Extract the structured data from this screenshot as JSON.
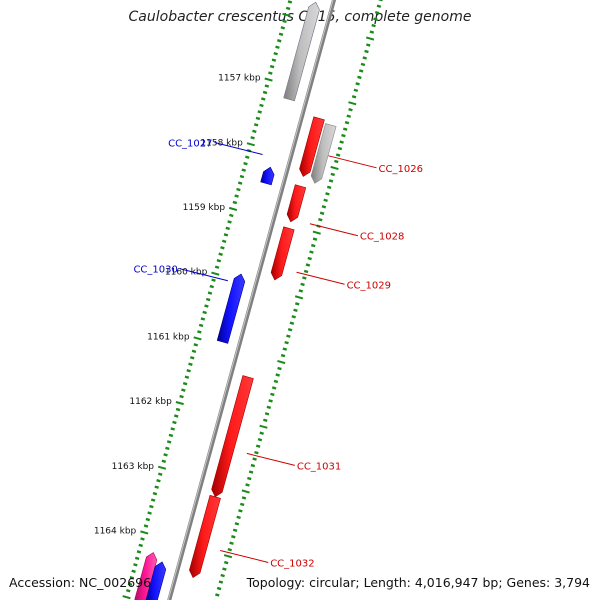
{
  "title": "Caulobacter crescentus CB15, complete genome",
  "footer": {
    "accession": "Accession: NC_002696",
    "summary": "Topology: circular; Length: 4,016,947 bp; Genes: 3,794"
  },
  "colors": {
    "forward_gene": "#ff0000",
    "reverse_gene": "#0000ff",
    "pseudo_gene": "#b3b3b3",
    "rna_gene": "#ff1493",
    "backbone": "#808080",
    "ruler": "#1a8c1a",
    "forward_label": "#cc0000",
    "reverse_label": "#0000cc"
  },
  "ruler_ticks": [
    {
      "label": "1157 kbp",
      "kbp": 1157
    },
    {
      "label": "1158 kbp",
      "kbp": 1158
    },
    {
      "label": "1159 kbp",
      "kbp": 1159
    },
    {
      "label": "1160 kbp",
      "kbp": 1160
    },
    {
      "label": "1161 kbp",
      "kbp": 1161
    },
    {
      "label": "1162 kbp",
      "kbp": 1162
    },
    {
      "label": "1163 kbp",
      "kbp": 1163
    },
    {
      "label": "1164 kbp",
      "kbp": 1164
    }
  ],
  "features": [
    {
      "strand": "reverse",
      "color": "reverse",
      "start_kbp": 1155.7,
      "end_kbp": 1157.2
    },
    {
      "strand": "reverse",
      "color": "pseudo",
      "start_kbp": 1155.7,
      "end_kbp": 1157.2
    },
    {
      "strand": "forward",
      "color": "forward",
      "start_kbp": 1157.35,
      "end_kbp": 1158.25
    },
    {
      "strand": "forward",
      "color": "pseudo",
      "start_kbp": 1157.4,
      "end_kbp": 1158.3
    },
    {
      "strand": "reverse",
      "color": "reverse",
      "start_kbp": 1158.25,
      "end_kbp": 1158.5
    },
    {
      "strand": "forward",
      "color": "forward",
      "start_kbp": 1158.4,
      "end_kbp": 1158.95
    },
    {
      "strand": "forward",
      "color": "forward",
      "start_kbp": 1159.05,
      "end_kbp": 1159.85
    },
    {
      "strand": "reverse",
      "color": "reverse",
      "start_kbp": 1159.9,
      "end_kbp": 1160.95
    },
    {
      "strand": "forward",
      "color": "forward",
      "start_kbp": 1161.35,
      "end_kbp": 1163.2
    },
    {
      "strand": "forward",
      "color": "forward",
      "start_kbp": 1163.2,
      "end_kbp": 1164.45
    },
    {
      "strand": "reverse",
      "color": "rna",
      "start_kbp": 1164.25,
      "end_kbp": 1165
    },
    {
      "strand": "reverse",
      "color": "reverse",
      "start_kbp": 1164.35,
      "end_kbp": 1165
    }
  ],
  "gene_labels": [
    {
      "text": "CC_1026",
      "strand": "forward",
      "kbp": 1157.85
    },
    {
      "text": "CC_1027",
      "strand": "reverse",
      "kbp": 1158.1
    },
    {
      "text": "CC_1028",
      "strand": "forward",
      "kbp": 1158.9
    },
    {
      "text": "CC_1029",
      "strand": "forward",
      "kbp": 1159.65
    },
    {
      "text": "CC_1030",
      "strand": "reverse",
      "kbp": 1160.05
    },
    {
      "text": "CC_1031",
      "strand": "forward",
      "kbp": 1162.45
    },
    {
      "text": "CC_1032",
      "strand": "forward",
      "kbp": 1163.95
    }
  ]
}
